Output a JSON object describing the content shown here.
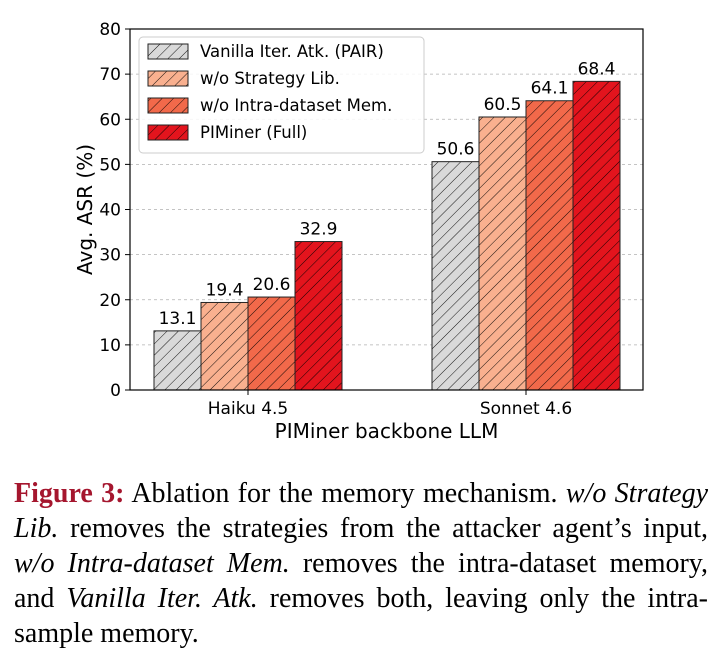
{
  "chart_data": {
    "type": "bar",
    "categories": [
      "Haiku 4.5",
      "Sonnet 4.6"
    ],
    "series": [
      {
        "name": "Vanilla Iter. Atk. (PAIR)",
        "values": [
          13.1,
          50.6
        ],
        "color": "#d9d9d9"
      },
      {
        "name": "w/o Strategy Lib.",
        "values": [
          19.4,
          60.5
        ],
        "color": "#f9b08f"
      },
      {
        "name": "w/o Intra-dataset Mem.",
        "values": [
          20.6,
          64.1
        ],
        "color": "#f2694a"
      },
      {
        "name": "PIMiner (Full)",
        "values": [
          32.9,
          68.4
        ],
        "color": "#e3141d"
      }
    ],
    "data_labels": [
      [
        "13.1",
        "50.6"
      ],
      [
        "19.4",
        "60.5"
      ],
      [
        "20.6",
        "64.1"
      ],
      [
        "32.9",
        "68.4"
      ]
    ],
    "xlabel": "PIMiner backbone LLM",
    "ylabel": "Avg. ASR (%)",
    "ylim": [
      0,
      80
    ],
    "yticks": [
      "0",
      "10",
      "20",
      "30",
      "40",
      "50",
      "60",
      "70",
      "80"
    ],
    "grid": "horizontal dashed",
    "legend": "top-left",
    "hatch": "diagonal"
  },
  "caption": {
    "label": "Figure 3:",
    "t1": " Ablation for the memory mechanism. ",
    "i1": "w/o Strategy Lib.",
    "t2": " removes the strategies from the attacker agent’s input, ",
    "i2": "w/o Intra-dataset Mem.",
    "t3": " removes the intra-dataset memory, and ",
    "i3": "Vanilla Iter. Atk.",
    "t4": " removes both, leaving only the intra-sample memory."
  }
}
